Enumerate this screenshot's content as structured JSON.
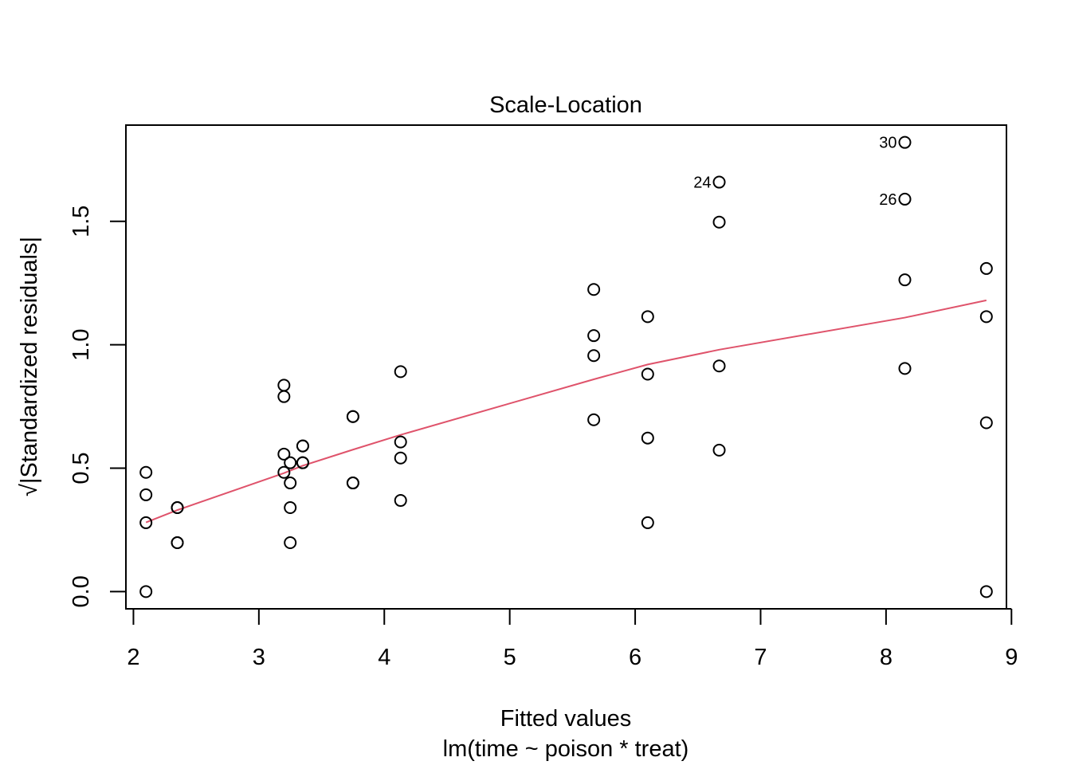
{
  "chart_data": {
    "type": "scatter",
    "title": "Scale-Location",
    "xlabel": "Fitted values",
    "subtitle": "lm(time ~ poison * treat)",
    "ylabel": "√|Standardized residuals|",
    "xlim": [
      1.94,
      8.96
    ],
    "ylim": [
      -0.07,
      1.89
    ],
    "xticks": [
      2,
      3,
      4,
      5,
      6,
      7,
      8,
      9
    ],
    "xtick_labels": [
      "2",
      "3",
      "4",
      "5",
      "6",
      "7",
      "8",
      "9"
    ],
    "yticks": [
      0.0,
      0.5,
      1.0,
      1.5
    ],
    "ytick_labels": [
      "0.0",
      "0.5",
      "1.0",
      "1.5"
    ],
    "grid": false,
    "points": [
      [
        2.1,
        0.483
      ],
      [
        2.1,
        0.392
      ],
      [
        2.1,
        0.279
      ],
      [
        2.1,
        0.0
      ],
      [
        2.35,
        0.34
      ],
      [
        2.35,
        0.34
      ],
      [
        2.35,
        0.198
      ],
      [
        2.35,
        0.198
      ],
      [
        3.2,
        0.836
      ],
      [
        3.2,
        0.79
      ],
      [
        3.2,
        0.557
      ],
      [
        3.2,
        0.483
      ],
      [
        3.25,
        0.522
      ],
      [
        3.25,
        0.44
      ],
      [
        3.25,
        0.34
      ],
      [
        3.25,
        0.198
      ],
      [
        3.35,
        0.59
      ],
      [
        3.35,
        0.59
      ],
      [
        3.35,
        0.522
      ],
      [
        3.35,
        0.522
      ],
      [
        3.75,
        0.709
      ],
      [
        3.75,
        0.709
      ],
      [
        3.75,
        0.44
      ],
      [
        3.75,
        0.44
      ],
      [
        4.13,
        0.891
      ],
      [
        4.13,
        0.606
      ],
      [
        4.13,
        0.541
      ],
      [
        4.13,
        0.369
      ],
      [
        5.67,
        1.224
      ],
      [
        5.67,
        1.037
      ],
      [
        5.67,
        0.956
      ],
      [
        5.67,
        0.696
      ],
      [
        6.1,
        1.114
      ],
      [
        6.1,
        0.881
      ],
      [
        6.1,
        0.622
      ],
      [
        6.1,
        0.279
      ],
      [
        6.67,
        1.659
      ],
      [
        6.67,
        1.497
      ],
      [
        6.67,
        0.914
      ],
      [
        6.67,
        0.573
      ],
      [
        8.15,
        1.82
      ],
      [
        8.15,
        1.59
      ],
      [
        8.15,
        1.263
      ],
      [
        8.15,
        0.904
      ],
      [
        8.8,
        1.309
      ],
      [
        8.8,
        1.114
      ],
      [
        8.8,
        0.684
      ],
      [
        8.8,
        0.0
      ]
    ],
    "annotations": [
      {
        "label": "30",
        "x": 8.15,
        "y": 1.82
      },
      {
        "label": "26",
        "x": 8.15,
        "y": 1.59
      },
      {
        "label": "24",
        "x": 6.67,
        "y": 1.659
      }
    ],
    "smooth_line": {
      "color": "#DF536B",
      "x": [
        2.1,
        2.35,
        3.2,
        3.25,
        3.35,
        3.75,
        4.13,
        5.67,
        6.1,
        6.67,
        8.15,
        8.8
      ],
      "y": [
        0.28,
        0.33,
        0.48,
        0.49,
        0.51,
        0.575,
        0.635,
        0.86,
        0.92,
        0.98,
        1.11,
        1.18
      ]
    }
  }
}
